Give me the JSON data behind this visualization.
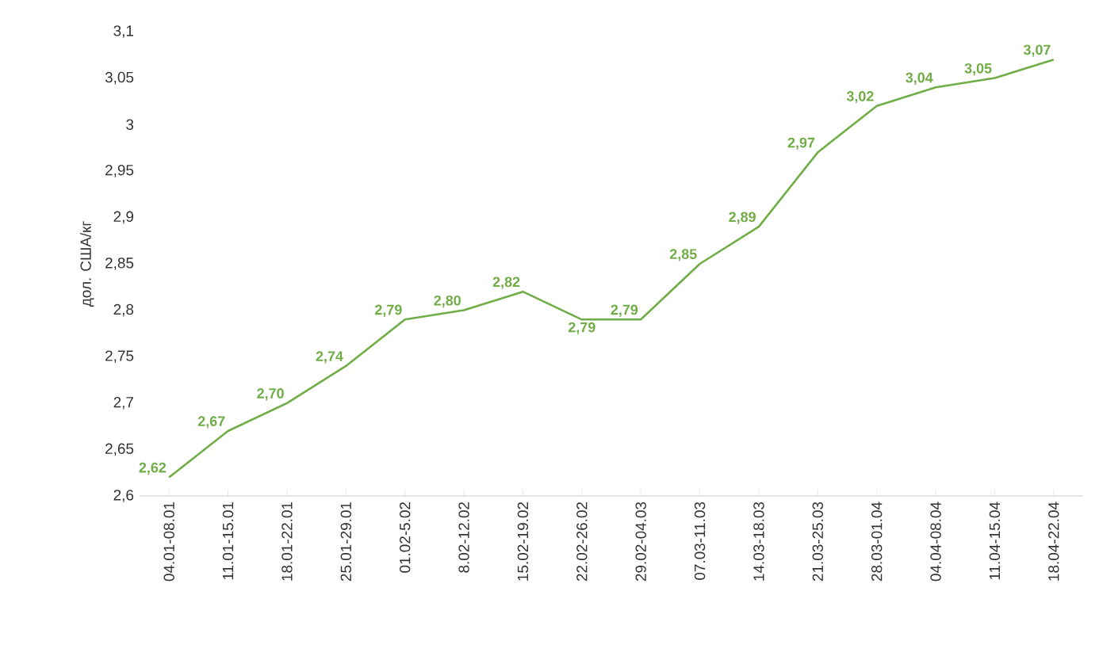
{
  "chart_data": {
    "type": "line",
    "ylabel": "дол. США/кг",
    "categories": [
      "04.01-08.01",
      "11.01-15.01",
      "18.01-22.01",
      "25.01-29.01",
      "01.02-5.02",
      "8.02-12.02",
      "15.02-19.02",
      "22.02-26.02",
      "29.02-04.03",
      "07.03-11.03",
      "14.03-18.03",
      "21.03-25.03",
      "28.03-01.04",
      "04.04-08.04",
      "11.04-15.04",
      "18.04-22.04"
    ],
    "values": [
      2.62,
      2.67,
      2.7,
      2.74,
      2.79,
      2.8,
      2.82,
      2.79,
      2.79,
      2.85,
      2.89,
      2.97,
      3.02,
      3.04,
      3.05,
      3.07
    ],
    "value_labels": [
      "2,62",
      "2,67",
      "2,70",
      "2,74",
      "2,79",
      "2,80",
      "2,82",
      "2,79",
      "2,79",
      "2,85",
      "2,89",
      "2,97",
      "3,02",
      "3,04",
      "3,05",
      "3,07"
    ],
    "color": "#70ad47",
    "ylim": [
      2.6,
      3.1
    ],
    "yticks": [
      {
        "value": 2.6,
        "label": "2,6"
      },
      {
        "value": 2.65,
        "label": "2,65"
      },
      {
        "value": 2.7,
        "label": "2,7"
      },
      {
        "value": 2.75,
        "label": "2,75"
      },
      {
        "value": 2.8,
        "label": "2,8"
      },
      {
        "value": 2.85,
        "label": "2,85"
      },
      {
        "value": 2.9,
        "label": "2,9"
      },
      {
        "value": 2.95,
        "label": "2,95"
      },
      {
        "value": 3.0,
        "label": "3"
      },
      {
        "value": 3.05,
        "label": "3,05"
      },
      {
        "value": 3.1,
        "label": "3,1"
      }
    ],
    "grid": false,
    "line_style": "solid",
    "marker": "none"
  }
}
